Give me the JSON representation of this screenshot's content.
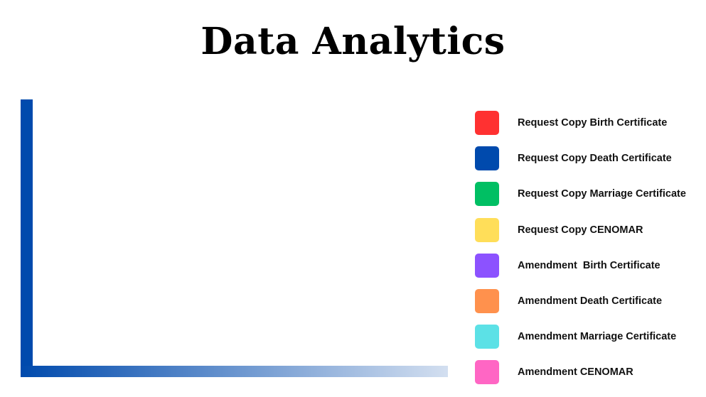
{
  "title": "Data Analytics",
  "chart_data": {
    "type": "bar",
    "title": "Data Analytics",
    "categories": [],
    "series": [
      {
        "name": "Request Copy Birth Certificate",
        "color": "#ff3131",
        "values": []
      },
      {
        "name": "Request Copy Death Certificate",
        "color": "#004aad",
        "values": []
      },
      {
        "name": "Request Copy Marriage Certificate",
        "color": "#00bf63",
        "values": []
      },
      {
        "name": "Request Copy CENOMAR",
        "color": "#ffde59",
        "values": []
      },
      {
        "name": "Amendment  Birth Certificate",
        "color": "#8c52ff",
        "values": []
      },
      {
        "name": "Amendment Death Certificate",
        "color": "#ff914d",
        "values": []
      },
      {
        "name": "Amendment Marriage Certificate",
        "color": "#5ce1e6",
        "values": []
      },
      {
        "name": "Amendment CENOMAR",
        "color": "#ff66c4",
        "values": []
      }
    ],
    "gridlines": 7,
    "grid": true,
    "legend_position": "right",
    "axis_color": "#004aad"
  }
}
